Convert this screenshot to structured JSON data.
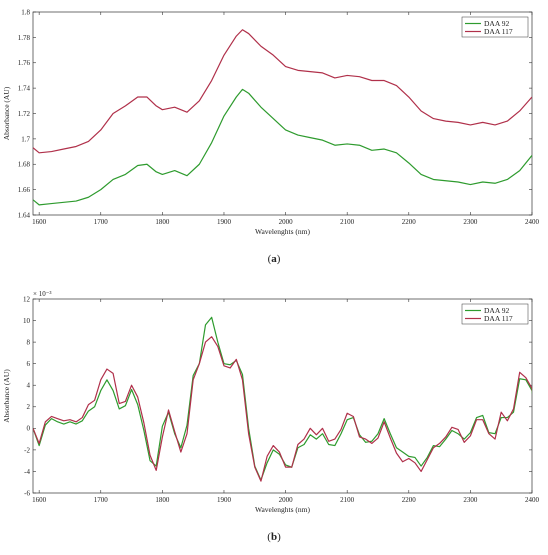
{
  "chart_data": [
    {
      "type": "line",
      "panel_label": "(a)",
      "xlabel": "Wavelenghts (nm)",
      "ylabel": "Absorbance (AU)",
      "exponent": "",
      "xlim": [
        1590,
        2400
      ],
      "ylim": [
        1.64,
        1.8
      ],
      "xticks": [
        1600,
        1700,
        1800,
        1900,
        2000,
        2100,
        2200,
        2300,
        2400
      ],
      "yticks": [
        1.64,
        1.66,
        1.68,
        1.7,
        1.72,
        1.74,
        1.76,
        1.78,
        1.8
      ],
      "ytick_labels": [
        "1.64",
        "1.66",
        "1.68",
        "1.7",
        "1.72",
        "1.74",
        "1.76",
        "1.78",
        "1.8"
      ],
      "legend_position": "top-right",
      "series": [
        {
          "name": "DAA 92",
          "color": "#2e9b2e",
          "points": [
            [
              1590,
              1.652
            ],
            [
              1600,
              1.648
            ],
            [
              1620,
              1.649
            ],
            [
              1640,
              1.65
            ],
            [
              1660,
              1.651
            ],
            [
              1680,
              1.654
            ],
            [
              1700,
              1.66
            ],
            [
              1720,
              1.668
            ],
            [
              1740,
              1.672
            ],
            [
              1760,
              1.679
            ],
            [
              1775,
              1.68
            ],
            [
              1790,
              1.674
            ],
            [
              1800,
              1.672
            ],
            [
              1820,
              1.675
            ],
            [
              1840,
              1.671
            ],
            [
              1860,
              1.68
            ],
            [
              1880,
              1.697
            ],
            [
              1900,
              1.718
            ],
            [
              1920,
              1.733
            ],
            [
              1930,
              1.739
            ],
            [
              1940,
              1.736
            ],
            [
              1960,
              1.725
            ],
            [
              1980,
              1.716
            ],
            [
              2000,
              1.707
            ],
            [
              2020,
              1.703
            ],
            [
              2040,
              1.701
            ],
            [
              2060,
              1.699
            ],
            [
              2080,
              1.695
            ],
            [
              2100,
              1.696
            ],
            [
              2120,
              1.695
            ],
            [
              2140,
              1.691
            ],
            [
              2160,
              1.692
            ],
            [
              2180,
              1.689
            ],
            [
              2200,
              1.681
            ],
            [
              2220,
              1.672
            ],
            [
              2240,
              1.668
            ],
            [
              2260,
              1.667
            ],
            [
              2280,
              1.666
            ],
            [
              2300,
              1.664
            ],
            [
              2320,
              1.666
            ],
            [
              2340,
              1.665
            ],
            [
              2360,
              1.668
            ],
            [
              2380,
              1.675
            ],
            [
              2400,
              1.687
            ]
          ]
        },
        {
          "name": "DAA 117",
          "color": "#b0304a",
          "points": [
            [
              1590,
              1.693
            ],
            [
              1600,
              1.689
            ],
            [
              1620,
              1.69
            ],
            [
              1640,
              1.692
            ],
            [
              1660,
              1.694
            ],
            [
              1680,
              1.698
            ],
            [
              1700,
              1.707
            ],
            [
              1720,
              1.72
            ],
            [
              1740,
              1.726
            ],
            [
              1760,
              1.733
            ],
            [
              1775,
              1.733
            ],
            [
              1790,
              1.726
            ],
            [
              1800,
              1.723
            ],
            [
              1820,
              1.725
            ],
            [
              1840,
              1.721
            ],
            [
              1860,
              1.73
            ],
            [
              1880,
              1.746
            ],
            [
              1900,
              1.766
            ],
            [
              1920,
              1.781
            ],
            [
              1930,
              1.786
            ],
            [
              1940,
              1.783
            ],
            [
              1960,
              1.773
            ],
            [
              1980,
              1.766
            ],
            [
              2000,
              1.757
            ],
            [
              2020,
              1.754
            ],
            [
              2040,
              1.753
            ],
            [
              2060,
              1.752
            ],
            [
              2080,
              1.748
            ],
            [
              2100,
              1.75
            ],
            [
              2120,
              1.749
            ],
            [
              2140,
              1.746
            ],
            [
              2160,
              1.746
            ],
            [
              2180,
              1.742
            ],
            [
              2200,
              1.733
            ],
            [
              2220,
              1.722
            ],
            [
              2240,
              1.716
            ],
            [
              2260,
              1.714
            ],
            [
              2280,
              1.713
            ],
            [
              2300,
              1.711
            ],
            [
              2320,
              1.713
            ],
            [
              2340,
              1.711
            ],
            [
              2360,
              1.714
            ],
            [
              2380,
              1.722
            ],
            [
              2400,
              1.733
            ]
          ]
        }
      ]
    },
    {
      "type": "line",
      "panel_label": "(b)",
      "xlabel": "Wavelenghts (nm)",
      "ylabel": "Absorbance (AU)",
      "exponent": "× 10⁻³",
      "xlim": [
        1590,
        2400
      ],
      "ylim": [
        -6,
        12
      ],
      "xticks": [
        1600,
        1700,
        1800,
        1900,
        2000,
        2100,
        2200,
        2300,
        2400
      ],
      "yticks": [
        -6,
        -4,
        -2,
        0,
        2,
        4,
        6,
        8,
        10,
        12
      ],
      "ytick_labels": [
        "-6",
        "-4",
        "-2",
        "0",
        "2",
        "4",
        "6",
        "8",
        "10",
        "12"
      ],
      "legend_position": "top-right",
      "series": [
        {
          "name": "DAA 92",
          "color": "#2e9b2e",
          "points": [
            [
              1590,
              0
            ],
            [
              1600,
              -1.6
            ],
            [
              1610,
              0.3
            ],
            [
              1620,
              0.9
            ],
            [
              1630,
              0.6
            ],
            [
              1640,
              0.4
            ],
            [
              1650,
              0.6
            ],
            [
              1660,
              0.4
            ],
            [
              1670,
              0.7
            ],
            [
              1680,
              1.6
            ],
            [
              1690,
              2.0
            ],
            [
              1700,
              3.5
            ],
            [
              1710,
              4.5
            ],
            [
              1720,
              3.5
            ],
            [
              1730,
              1.8
            ],
            [
              1740,
              2.1
            ],
            [
              1750,
              3.6
            ],
            [
              1760,
              2.2
            ],
            [
              1770,
              -0.2
            ],
            [
              1780,
              -3.0
            ],
            [
              1790,
              -3.5
            ],
            [
              1800,
              0.2
            ],
            [
              1810,
              1.5
            ],
            [
              1820,
              -0.5
            ],
            [
              1830,
              -1.8
            ],
            [
              1840,
              0.3
            ],
            [
              1850,
              4.9
            ],
            [
              1860,
              6.0
            ],
            [
              1870,
              9.6
            ],
            [
              1880,
              10.3
            ],
            [
              1890,
              8.0
            ],
            [
              1900,
              6.0
            ],
            [
              1910,
              5.9
            ],
            [
              1920,
              6.3
            ],
            [
              1930,
              5.0
            ],
            [
              1940,
              0
            ],
            [
              1950,
              -3.5
            ],
            [
              1960,
              -4.8
            ],
            [
              1970,
              -3.2
            ],
            [
              1980,
              -2.0
            ],
            [
              1990,
              -2.4
            ],
            [
              2000,
              -3.4
            ],
            [
              2010,
              -3.6
            ],
            [
              2020,
              -1.8
            ],
            [
              2030,
              -1.5
            ],
            [
              2040,
              -0.6
            ],
            [
              2050,
              -1.0
            ],
            [
              2060,
              -0.5
            ],
            [
              2070,
              -1.5
            ],
            [
              2080,
              -1.6
            ],
            [
              2090,
              -0.5
            ],
            [
              2100,
              0.8
            ],
            [
              2110,
              1.0
            ],
            [
              2120,
              -0.6
            ],
            [
              2130,
              -1.3
            ],
            [
              2140,
              -1.2
            ],
            [
              2150,
              -0.5
            ],
            [
              2160,
              0.9
            ],
            [
              2170,
              -0.5
            ],
            [
              2180,
              -1.8
            ],
            [
              2190,
              -2.2
            ],
            [
              2200,
              -2.6
            ],
            [
              2210,
              -2.7
            ],
            [
              2220,
              -3.5
            ],
            [
              2230,
              -2.7
            ],
            [
              2240,
              -1.6
            ],
            [
              2250,
              -1.7
            ],
            [
              2260,
              -1.0
            ],
            [
              2270,
              -0.2
            ],
            [
              2280,
              -0.5
            ],
            [
              2290,
              -1.0
            ],
            [
              2300,
              -0.4
            ],
            [
              2310,
              1.0
            ],
            [
              2320,
              1.2
            ],
            [
              2330,
              -0.4
            ],
            [
              2340,
              -0.5
            ],
            [
              2350,
              1.0
            ],
            [
              2360,
              1.0
            ],
            [
              2370,
              1.5
            ],
            [
              2380,
              4.6
            ],
            [
              2390,
              4.5
            ],
            [
              2400,
              3.5
            ],
            [
              2410,
              0
            ]
          ]
        },
        {
          "name": "DAA 117",
          "color": "#b0304a",
          "points": [
            [
              1590,
              0
            ],
            [
              1600,
              -1.4
            ],
            [
              1610,
              0.6
            ],
            [
              1620,
              1.1
            ],
            [
              1630,
              0.9
            ],
            [
              1640,
              0.7
            ],
            [
              1650,
              0.8
            ],
            [
              1660,
              0.6
            ],
            [
              1670,
              1.0
            ],
            [
              1680,
              2.2
            ],
            [
              1690,
              2.6
            ],
            [
              1700,
              4.5
            ],
            [
              1710,
              5.5
            ],
            [
              1720,
              5.1
            ],
            [
              1730,
              2.3
            ],
            [
              1740,
              2.5
            ],
            [
              1750,
              4.0
            ],
            [
              1760,
              2.9
            ],
            [
              1770,
              0.5
            ],
            [
              1780,
              -2.5
            ],
            [
              1790,
              -3.9
            ],
            [
              1800,
              -0.8
            ],
            [
              1810,
              1.7
            ],
            [
              1820,
              -0.3
            ],
            [
              1830,
              -2.2
            ],
            [
              1840,
              -0.5
            ],
            [
              1850,
              4.5
            ],
            [
              1860,
              6.0
            ],
            [
              1870,
              8.0
            ],
            [
              1880,
              8.5
            ],
            [
              1890,
              7.6
            ],
            [
              1900,
              5.8
            ],
            [
              1910,
              5.6
            ],
            [
              1920,
              6.4
            ],
            [
              1930,
              4.5
            ],
            [
              1940,
              -0.5
            ],
            [
              1950,
              -3.6
            ],
            [
              1960,
              -4.9
            ],
            [
              1970,
              -2.6
            ],
            [
              1980,
              -1.6
            ],
            [
              1990,
              -2.2
            ],
            [
              2000,
              -3.6
            ],
            [
              2010,
              -3.6
            ],
            [
              2020,
              -1.5
            ],
            [
              2030,
              -1.0
            ],
            [
              2040,
              0
            ],
            [
              2050,
              -0.6
            ],
            [
              2060,
              0
            ],
            [
              2070,
              -1.2
            ],
            [
              2080,
              -1.0
            ],
            [
              2090,
              -0.1
            ],
            [
              2100,
              1.4
            ],
            [
              2110,
              1.1
            ],
            [
              2120,
              -0.8
            ],
            [
              2130,
              -1.0
            ],
            [
              2140,
              -1.4
            ],
            [
              2150,
              -0.9
            ],
            [
              2160,
              0.6
            ],
            [
              2170,
              -0.9
            ],
            [
              2180,
              -2.3
            ],
            [
              2190,
              -3.1
            ],
            [
              2200,
              -2.8
            ],
            [
              2210,
              -3.2
            ],
            [
              2220,
              -4.0
            ],
            [
              2230,
              -2.9
            ],
            [
              2240,
              -1.8
            ],
            [
              2250,
              -1.4
            ],
            [
              2260,
              -0.8
            ],
            [
              2270,
              0.1
            ],
            [
              2280,
              -0.1
            ],
            [
              2290,
              -1.3
            ],
            [
              2300,
              -0.7
            ],
            [
              2310,
              0.8
            ],
            [
              2320,
              0.8
            ],
            [
              2330,
              -0.5
            ],
            [
              2340,
              -1.0
            ],
            [
              2350,
              1.5
            ],
            [
              2360,
              0.7
            ],
            [
              2370,
              1.8
            ],
            [
              2380,
              5.2
            ],
            [
              2390,
              4.7
            ],
            [
              2400,
              3.7
            ],
            [
              2410,
              0
            ]
          ]
        }
      ]
    }
  ]
}
